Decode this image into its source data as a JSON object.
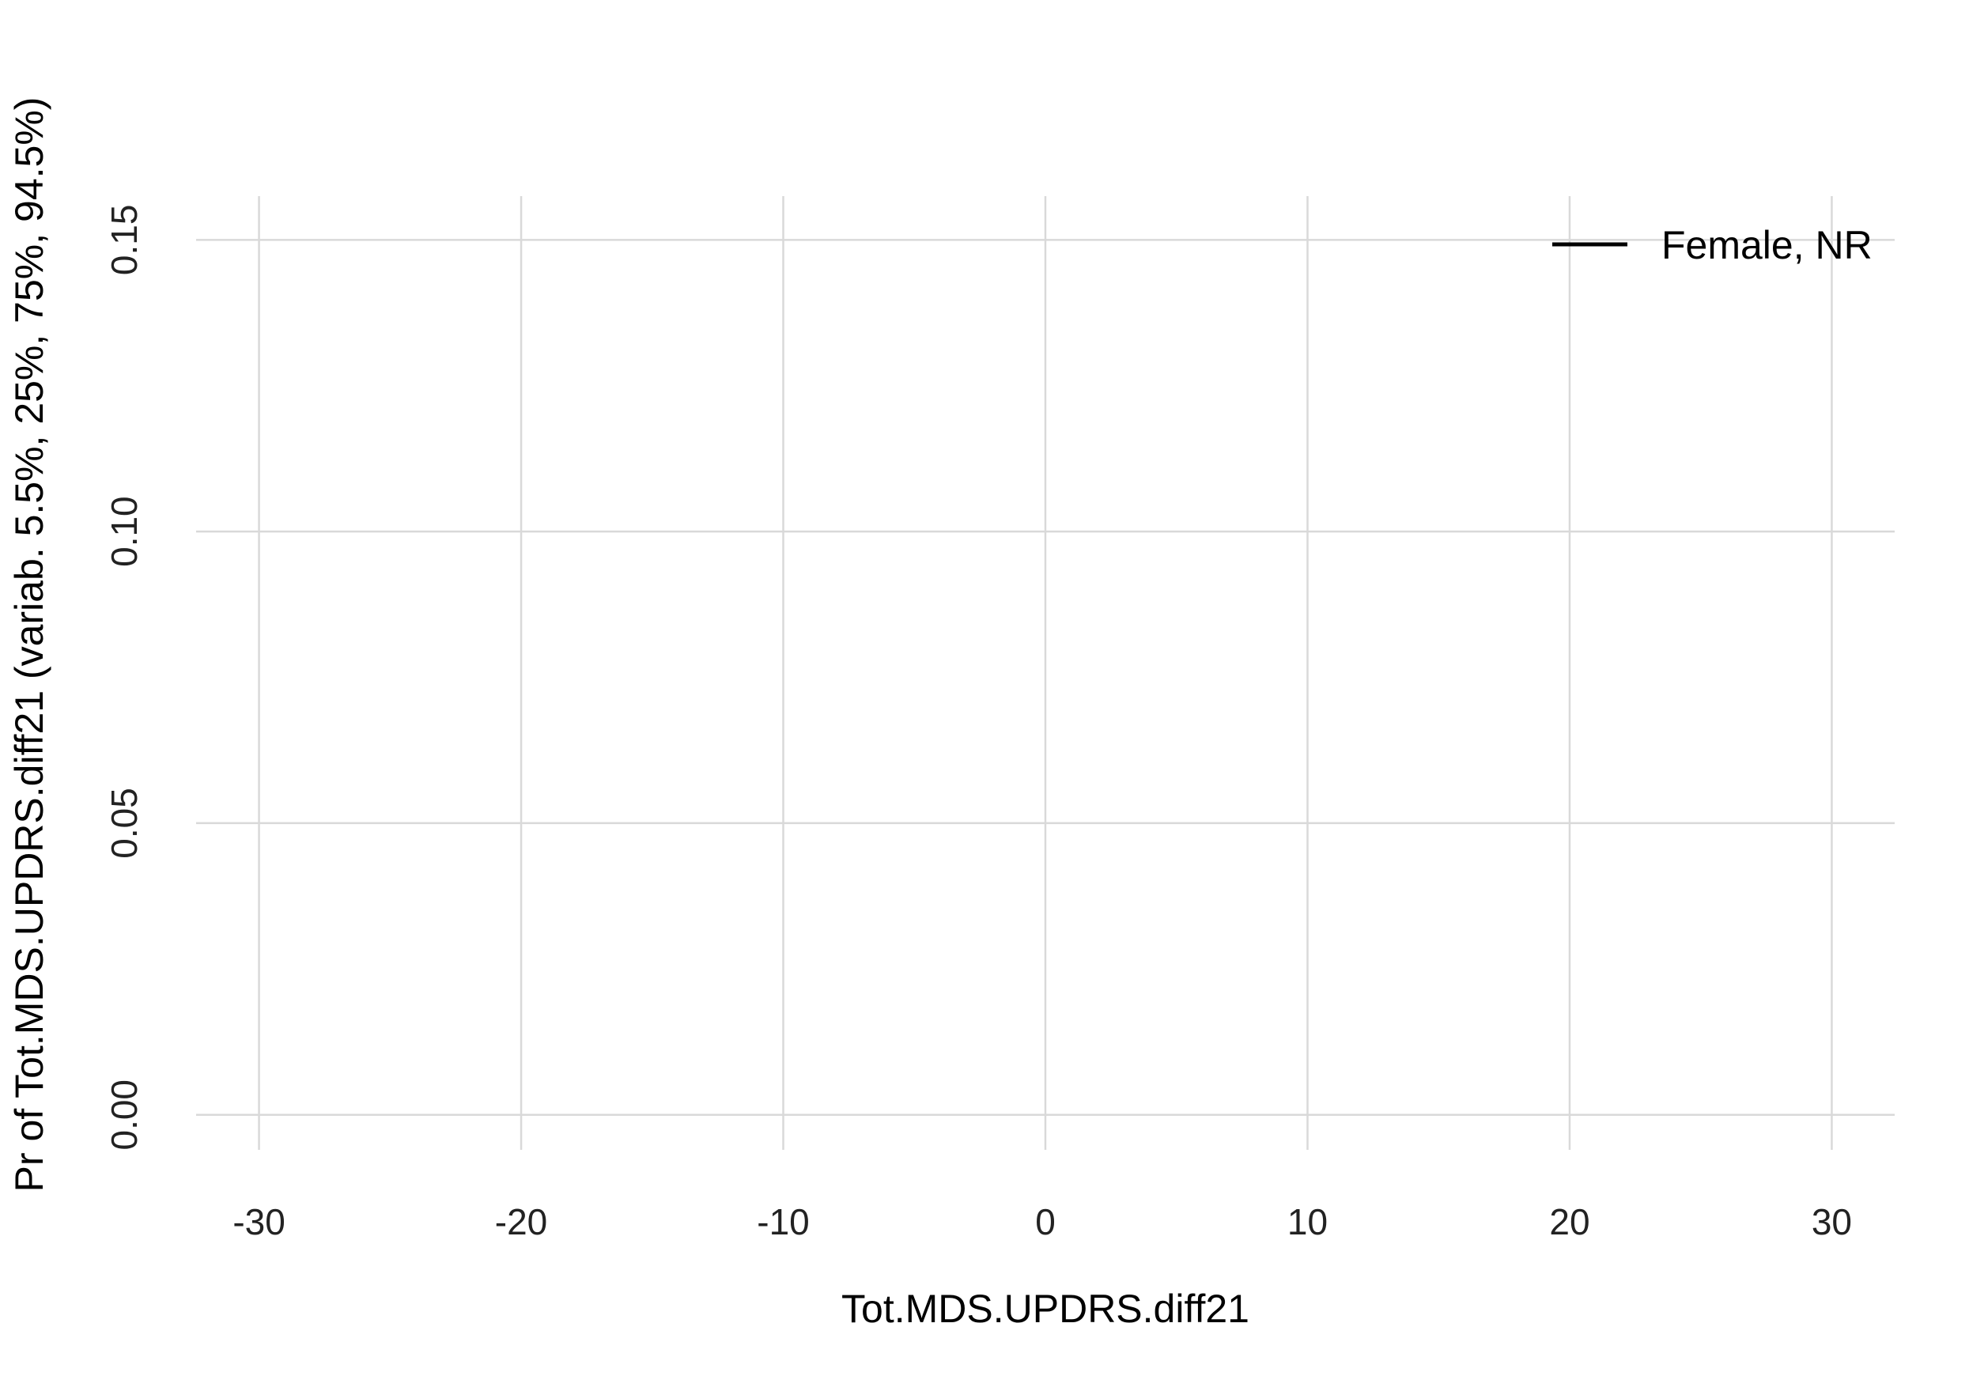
{
  "chart_data": {
    "type": "line",
    "title": "",
    "xlabel": "Tot.MDS.UPDRS.diff21",
    "ylabel": "Pr of Tot.MDS.UPDRS.diff21  (variab. 5.5%, 25%, 75%, 94.5%)",
    "xlim": [
      -32.4,
      32.4
    ],
    "ylim": [
      -0.006,
      0.1575
    ],
    "x_ticks": [
      -30,
      -20,
      -10,
      0,
      10,
      20,
      30
    ],
    "x_tick_labels": [
      "-30",
      "-20",
      "-10",
      "0",
      "10",
      "20",
      "30"
    ],
    "y_ticks": [
      0,
      0.05,
      0.1,
      0.15
    ],
    "y_tick_labels": [
      "0.00",
      "0.05",
      "0.10",
      "0.15"
    ],
    "grid": true,
    "legend_position": "top-right",
    "series": [
      {
        "name": "Female, NR",
        "color": "#000000",
        "x": [],
        "y": []
      }
    ]
  }
}
